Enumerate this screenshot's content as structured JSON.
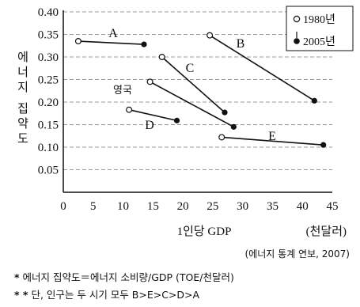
{
  "chart_data": {
    "type": "scatter",
    "xlabel": "1인당 GDP",
    "xunit": "(천달러)",
    "ylabel": "에너지 집약도",
    "xlim": [
      0,
      45
    ],
    "ylim": [
      0,
      0.4
    ],
    "xticks": [
      "0",
      "5",
      "10",
      "15",
      "20",
      "25",
      "30",
      "35",
      "40",
      "45"
    ],
    "yticks": [
      "0.05",
      "0.10",
      "0.15",
      "0.20",
      "0.25",
      "0.30",
      "0.35",
      "0.40"
    ],
    "grid": "horizontal dashed",
    "legend": {
      "placement": "top-right",
      "items": [
        "1980년",
        "2005년"
      ]
    },
    "series": [
      {
        "name": "1980년",
        "marker": "open circle"
      },
      {
        "name": "2005년",
        "marker": "filled circle"
      }
    ],
    "countries": [
      {
        "label": "A",
        "from": [
          2.5,
          0.335
        ],
        "to": [
          13.5,
          0.328
        ]
      },
      {
        "label": "B",
        "from": [
          24.5,
          0.348
        ],
        "to": [
          42.0,
          0.203
        ]
      },
      {
        "label": "C",
        "from": [
          16.5,
          0.3
        ],
        "to": [
          27.0,
          0.177
        ]
      },
      {
        "label": "영국",
        "from": [
          14.5,
          0.245
        ],
        "to": [
          28.5,
          0.145
        ]
      },
      {
        "label": "D",
        "from": [
          11.0,
          0.183
        ],
        "to": [
          19.0,
          0.159
        ]
      },
      {
        "label": "E",
        "from": [
          26.5,
          0.122
        ],
        "to": [
          43.5,
          0.105
        ]
      }
    ],
    "source": "(에너지 통계 연보, 2007)"
  },
  "notes": [
    {
      "mark": "*",
      "text": "에너지 집약도＝에너지 소비량/GDP (TOE/천달러)"
    },
    {
      "mark": "* *",
      "text": "단, 인구는 두 시기 모두 B>E>C>D>A"
    }
  ],
  "colors": {
    "ink": "#111111",
    "grid": "#9a9a9a"
  }
}
